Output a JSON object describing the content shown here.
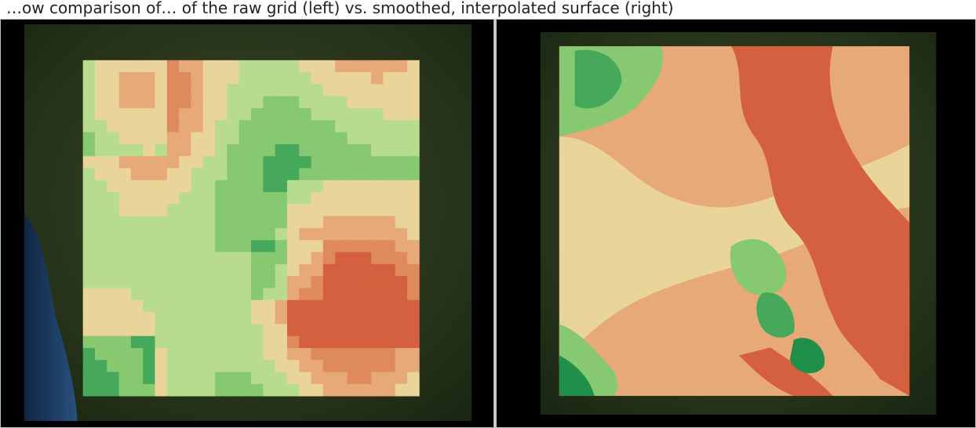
{
  "caption": "…ow comparison of… of the raw grid (left) vs. smoothed, interpolated surface (right)",
  "panels": [
    {
      "kind": "raster-grid",
      "view": "left"
    },
    {
      "kind": "smoothed-contours",
      "view": "right"
    }
  ],
  "colors": {
    "ramp": [
      "#1f8f4a",
      "#46a85a",
      "#86c971",
      "#b8dc8e",
      "#e9d49a",
      "#e6a977",
      "#df8a5d",
      "#d4603f"
    ],
    "background": "#000000",
    "basemap_forest": "#2b3a1e",
    "basemap_ocean": "#1b3555"
  },
  "icons": [
    "satellite-basemap-imagery"
  ]
}
